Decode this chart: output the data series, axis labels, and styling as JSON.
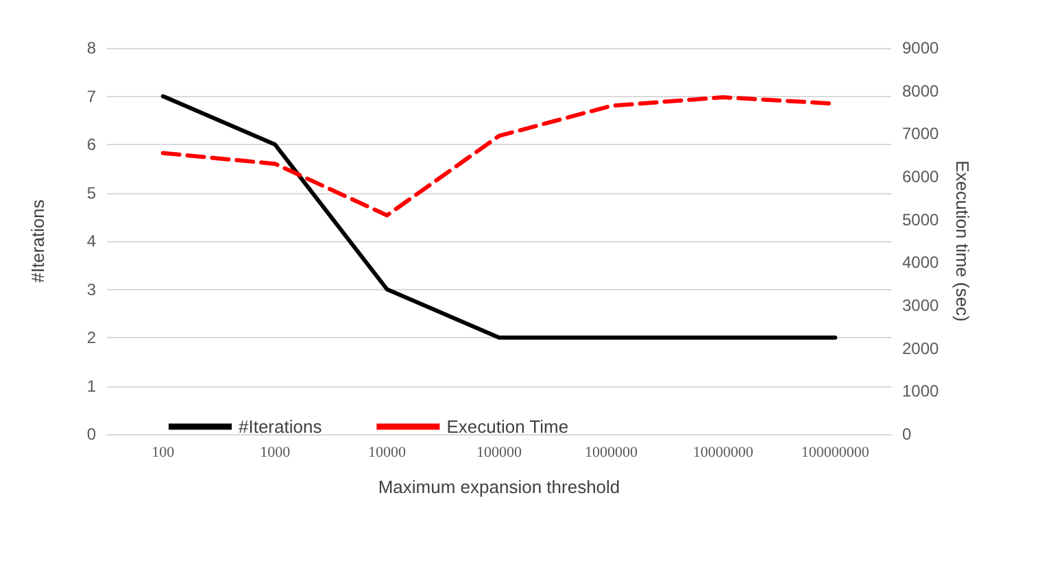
{
  "chart_data": {
    "type": "line",
    "xlabel": "Maximum expansion threshold",
    "ylabel": "#Iterations",
    "y2label": "Execution time (sec)",
    "categories": [
      "100",
      "1000",
      "10000",
      "100000",
      "1000000",
      "10000000",
      "100000000"
    ],
    "series": [
      {
        "name": "#Iterations",
        "color": "#000000",
        "values": [
          7,
          6,
          3,
          2,
          2,
          2,
          2
        ],
        "line_style": "solid"
      },
      {
        "name": "Execution Time",
        "color": "#ff0000",
        "values": [
          6550,
          6300,
          5100,
          6950,
          7650,
          7850,
          7700
        ],
        "axis": "y2",
        "line_style": "dashed"
      }
    ],
    "ylim": [
      0,
      8
    ],
    "yticks": [
      0,
      1,
      2,
      3,
      4,
      5,
      6,
      7,
      8
    ],
    "y2lim": [
      0,
      9000
    ],
    "y2ticks": [
      0,
      1000,
      2000,
      3000,
      4000,
      5000,
      6000,
      7000,
      8000,
      9000
    ],
    "grid": "y",
    "legend": "bottom",
    "marker": "none"
  }
}
